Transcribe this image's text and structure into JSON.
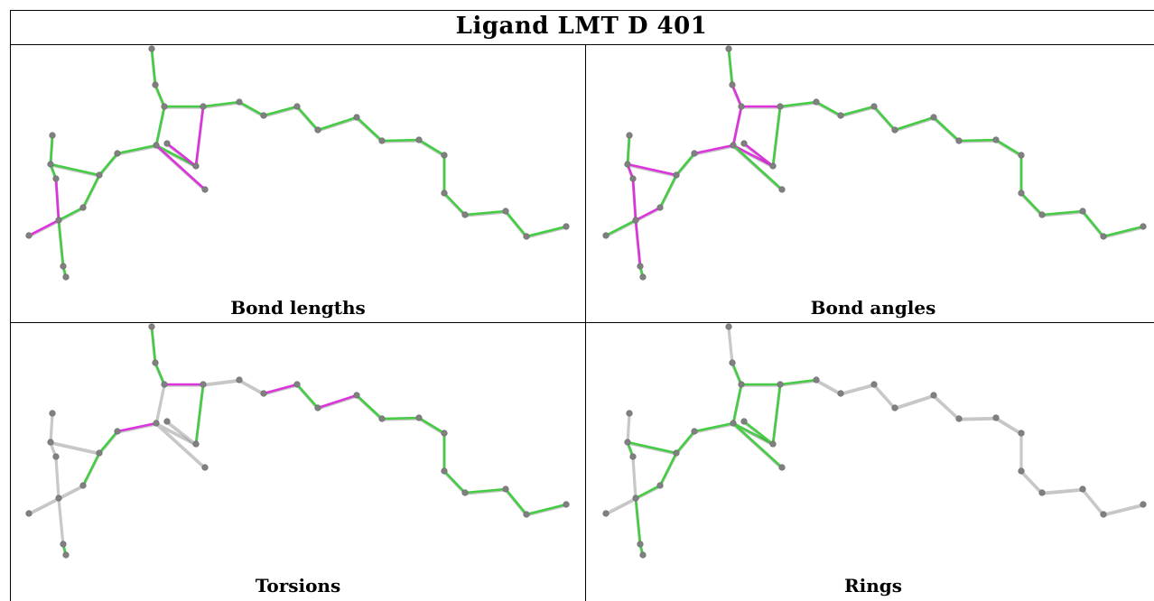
{
  "title": "Ligand LMT D 401",
  "panels": [
    {
      "id": "bond-lengths",
      "caption": "Bond lengths"
    },
    {
      "id": "bond-angles",
      "caption": "Bond angles"
    },
    {
      "id": "torsions",
      "caption": "Torsions"
    },
    {
      "id": "rings",
      "caption": "Rings"
    }
  ],
  "colors": {
    "ok": "#44cc44",
    "outlier": "#dd33dd",
    "neutral": "#c8c8c8",
    "atom": "#808080"
  }
}
